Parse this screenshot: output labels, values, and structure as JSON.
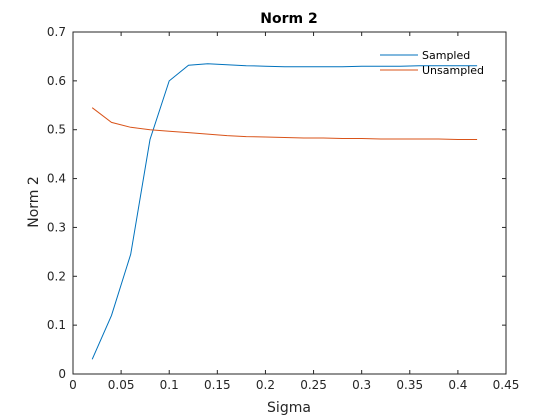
{
  "chart_data": {
    "type": "line",
    "title": "Norm 2",
    "xlabel": "Sigma",
    "ylabel": "Norm 2",
    "xlim": [
      0,
      0.45
    ],
    "ylim": [
      0,
      0.7
    ],
    "xticks": [
      "0",
      "0.05",
      "0.1",
      "0.15",
      "0.2",
      "0.25",
      "0.3",
      "0.35",
      "0.4",
      "0.45"
    ],
    "yticks": [
      "0",
      "0.1",
      "0.2",
      "0.3",
      "0.4",
      "0.5",
      "0.6",
      "0.7"
    ],
    "grid": false,
    "legend_position": "top-right",
    "x": [
      0.02,
      0.04,
      0.06,
      0.08,
      0.1,
      0.12,
      0.14,
      0.16,
      0.18,
      0.2,
      0.22,
      0.24,
      0.26,
      0.28,
      0.3,
      0.32,
      0.34,
      0.36,
      0.38,
      0.4,
      0.42
    ],
    "series": [
      {
        "name": "Sampled",
        "color": "#0072bd",
        "values": [
          0.03,
          0.12,
          0.245,
          0.48,
          0.6,
          0.632,
          0.635,
          0.633,
          0.631,
          0.63,
          0.629,
          0.629,
          0.629,
          0.629,
          0.63,
          0.63,
          0.63,
          0.631,
          0.631,
          0.631,
          0.631
        ]
      },
      {
        "name": "Unsampled",
        "color": "#d95319",
        "values": [
          0.545,
          0.515,
          0.505,
          0.5,
          0.497,
          0.494,
          0.491,
          0.488,
          0.486,
          0.485,
          0.484,
          0.483,
          0.483,
          0.482,
          0.482,
          0.481,
          0.481,
          0.481,
          0.481,
          0.48,
          0.48
        ]
      }
    ]
  }
}
